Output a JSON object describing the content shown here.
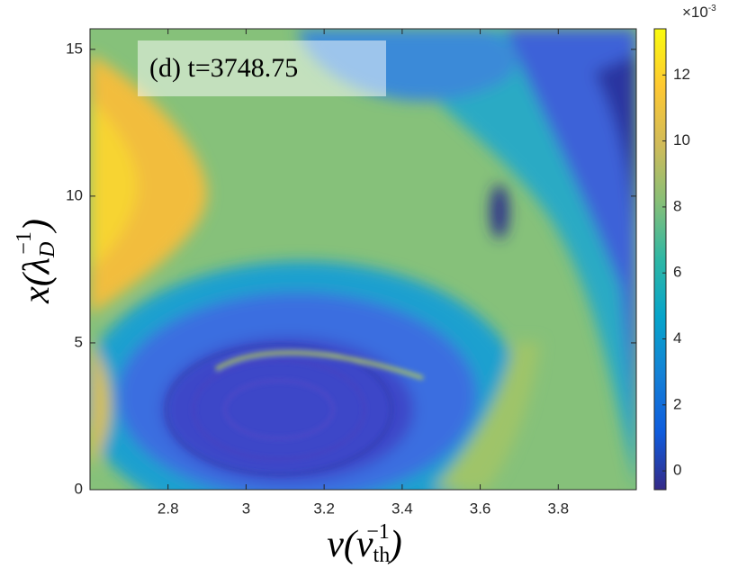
{
  "chart_data": {
    "type": "heatmap",
    "title": "(d) t=3748.75",
    "x_label": {
      "text": "v(v",
      "sub": "th",
      "sup": "−1",
      "close": ")"
    },
    "y_label": {
      "text": "x(λ",
      "sub": "D",
      "sup": "−1",
      "close": ")"
    },
    "xlim": [
      2.6,
      4.0
    ],
    "xticks": [
      2.8,
      3,
      3.2,
      3.4,
      3.6,
      3.8
    ],
    "ylim": [
      0,
      15.7
    ],
    "yticks": [
      0,
      5,
      10,
      15
    ],
    "clim": [
      -0.57,
      13.4
    ],
    "cticks": [
      0,
      2,
      4,
      6,
      8,
      10,
      12
    ],
    "c_exponent": {
      "base": "×10",
      "sup": "-3"
    },
    "colormap": [
      "#352a87",
      "#0f5cdd",
      "#1481d6",
      "#06a4ca",
      "#2eb7a4",
      "#87bf77",
      "#d1bb59",
      "#fec832",
      "#f9fb0e"
    ]
  }
}
